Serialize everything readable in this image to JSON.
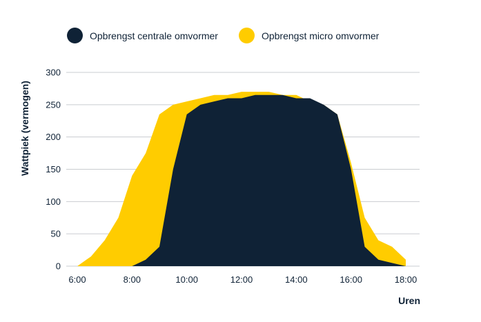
{
  "chart_data": {
    "type": "area",
    "x": [
      "6:00",
      "6:30",
      "7:00",
      "7:30",
      "8:00",
      "8:30",
      "9:00",
      "9:30",
      "10:00",
      "10:30",
      "11:00",
      "11:30",
      "12:00",
      "12:30",
      "13:00",
      "13:30",
      "14:00",
      "14:30",
      "15:00",
      "15:30",
      "16:00",
      "16:30",
      "17:00",
      "17:30",
      "18:00"
    ],
    "series": [
      {
        "name": "Opbrengst micro omvormer",
        "color": "#ffcc00",
        "values": [
          0,
          15,
          40,
          75,
          140,
          175,
          235,
          250,
          255,
          260,
          265,
          265,
          270,
          270,
          270,
          265,
          265,
          255,
          250,
          235,
          160,
          75,
          40,
          30,
          10
        ]
      },
      {
        "name": "Opbrengst centrale omvormer",
        "color": "#0f2236",
        "values": [
          0,
          0,
          0,
          0,
          0,
          10,
          30,
          150,
          235,
          250,
          255,
          260,
          260,
          265,
          265,
          265,
          260,
          260,
          250,
          235,
          150,
          30,
          10,
          5,
          0
        ]
      }
    ],
    "xticks": [
      "6:00",
      "8:00",
      "10:00",
      "12:00",
      "14:00",
      "16:00",
      "18:00"
    ],
    "yticks": [
      0,
      50,
      100,
      150,
      200,
      250,
      300
    ],
    "ylim": [
      0,
      300
    ],
    "ylabel": "Wattpiek (vermogen)",
    "xlabel": "Uren",
    "grid": "horizontal",
    "legend": "top"
  }
}
